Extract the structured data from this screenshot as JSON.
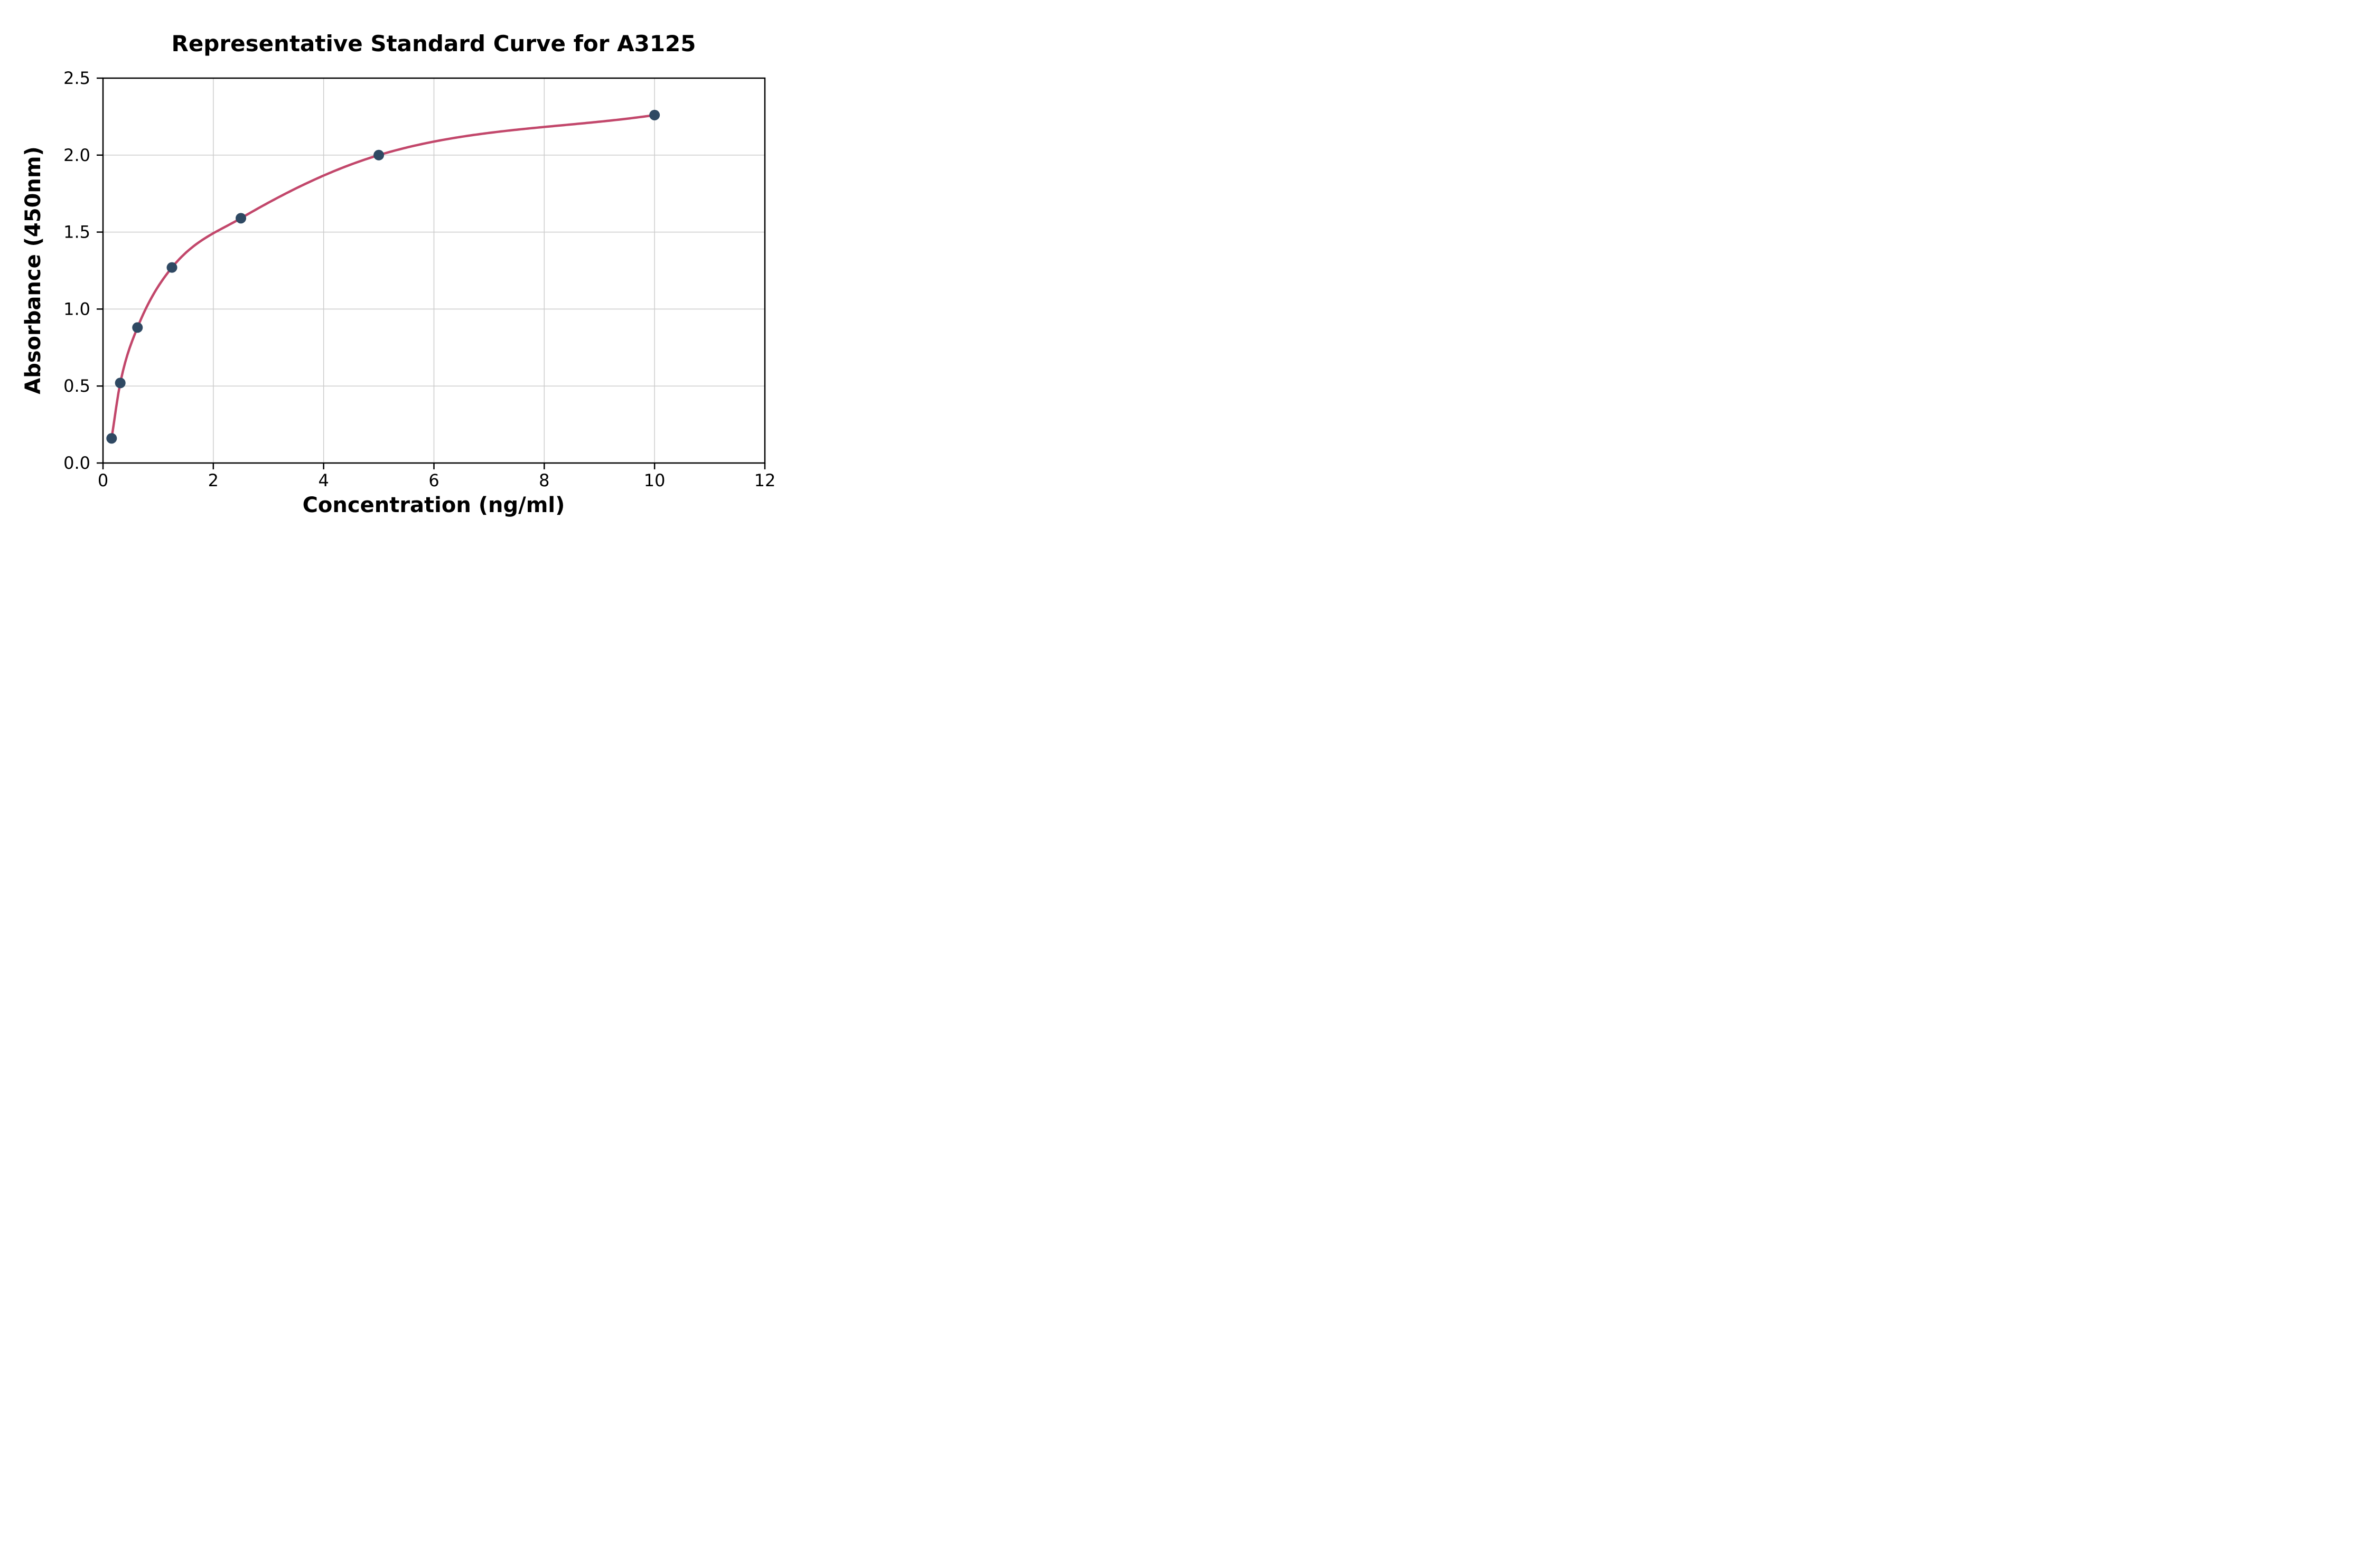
{
  "chart_data": {
    "type": "scatter",
    "title": "Representative Standard Curve for A3125",
    "xlabel": "Concentration (ng/ml)",
    "ylabel": "Absorbance (450nm)",
    "xlim": [
      0,
      12
    ],
    "ylim": [
      0,
      2.5
    ],
    "grid": true,
    "grid_color": "#cccccc",
    "curve_color": "#c2476b",
    "point_color": "#2f4963",
    "legend": "none",
    "xticks": [
      {
        "value": 0,
        "label": "0"
      },
      {
        "value": 2,
        "label": "2"
      },
      {
        "value": 4,
        "label": "4"
      },
      {
        "value": 6,
        "label": "6"
      },
      {
        "value": 8,
        "label": "8"
      },
      {
        "value": 10,
        "label": "10"
      },
      {
        "value": 12,
        "label": "12"
      }
    ],
    "yticks": [
      {
        "value": 0.0,
        "label": "0.0"
      },
      {
        "value": 0.5,
        "label": "0.5"
      },
      {
        "value": 1.0,
        "label": "1.0"
      },
      {
        "value": 1.5,
        "label": "1.5"
      },
      {
        "value": 2.0,
        "label": "2.0"
      },
      {
        "value": 2.5,
        "label": "2.5"
      }
    ],
    "points": [
      {
        "x": 0.156,
        "y": 0.16
      },
      {
        "x": 0.313,
        "y": 0.52
      },
      {
        "x": 0.625,
        "y": 0.88
      },
      {
        "x": 1.25,
        "y": 1.27
      },
      {
        "x": 2.5,
        "y": 1.59
      },
      {
        "x": 5,
        "y": 2.0
      },
      {
        "x": 10,
        "y": 2.26
      }
    ],
    "curve": "smooth fit through standard points"
  }
}
